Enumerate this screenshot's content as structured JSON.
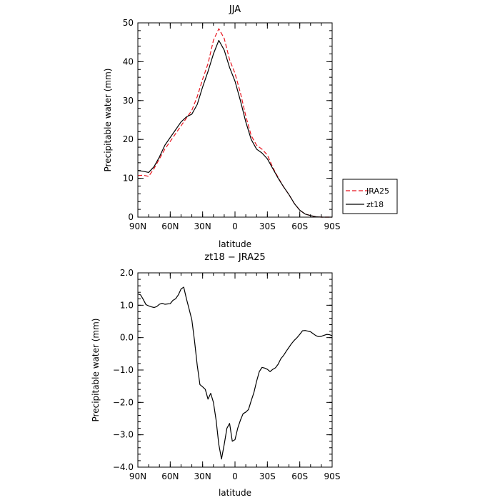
{
  "chart_data": [
    {
      "type": "line",
      "title": "JJA",
      "xlabel": "latitude",
      "ylabel": "Precipitable water (mm)",
      "xlim": [
        90,
        -90
      ],
      "ylim": [
        0,
        50
      ],
      "x_ticks": [
        90,
        60,
        30,
        0,
        -30,
        -60,
        -90
      ],
      "x_tick_labels": [
        "90N",
        "60N",
        "30N",
        "0",
        "30S",
        "60S",
        "90S"
      ],
      "y_ticks": [
        0,
        10,
        20,
        30,
        40,
        50
      ],
      "y_tick_labels": [
        "0",
        "10",
        "20",
        "30",
        "40",
        "50"
      ],
      "legend_position": "right",
      "series": [
        {
          "name": "JRA25",
          "color": "#e8141e",
          "dash": "dashed",
          "x": [
            90,
            85,
            80,
            75,
            70,
            65,
            60,
            55,
            50,
            45,
            40,
            35,
            30,
            25,
            20,
            15,
            10,
            5,
            0,
            -5,
            -10,
            -15,
            -20,
            -25,
            -30,
            -35,
            -40,
            -45,
            -50,
            -55,
            -60,
            -65,
            -70,
            -75,
            -80,
            -85,
            -90
          ],
          "y": [
            10.7,
            10.8,
            10.5,
            12.5,
            15,
            17.5,
            19.5,
            21.5,
            23.5,
            25.5,
            27.5,
            31,
            35.5,
            39.5,
            45.5,
            48.5,
            46,
            40.5,
            37,
            32,
            26,
            21,
            18.5,
            17.5,
            16,
            12.8,
            10.2,
            7.8,
            5.8,
            3.5,
            1.8,
            0.8,
            0.4,
            0.1,
            0,
            0,
            0
          ]
        },
        {
          "name": "zt18",
          "color": "#000000",
          "dash": "solid",
          "x": [
            90,
            85,
            80,
            75,
            70,
            65,
            60,
            55,
            50,
            45,
            40,
            35,
            30,
            25,
            20,
            15,
            10,
            5,
            0,
            -5,
            -10,
            -15,
            -20,
            -25,
            -30,
            -35,
            -40,
            -45,
            -50,
            -55,
            -60,
            -65,
            -70,
            -75,
            -80,
            -85,
            -90
          ],
          "y": [
            12,
            11.8,
            11.5,
            13,
            15.5,
            18.5,
            20.5,
            22.5,
            24.5,
            25.8,
            26.5,
            29,
            33.5,
            37.5,
            42,
            45.5,
            43,
            38.5,
            35,
            30,
            24.5,
            20,
            17.5,
            16.5,
            15,
            12.5,
            10,
            7.8,
            5.8,
            3.5,
            1.8,
            0.8,
            0.4,
            0.1,
            0,
            0,
            0
          ]
        }
      ]
    },
    {
      "type": "line",
      "title": "zt18 − JRA25",
      "xlabel": "latitude",
      "ylabel": "Precipitable water (mm)",
      "xlim": [
        90,
        -90
      ],
      "ylim": [
        -4,
        2
      ],
      "x_ticks": [
        90,
        60,
        30,
        0,
        -30,
        -60,
        -90
      ],
      "x_tick_labels": [
        "90N",
        "60N",
        "30N",
        "0",
        "30S",
        "60S",
        "90S"
      ],
      "y_ticks": [
        -4,
        -3,
        -2,
        -1,
        0,
        1,
        2
      ],
      "y_tick_labels": [
        "−4.0",
        "−3.0",
        "−2.0",
        "−1.0",
        "0.0",
        "1.0",
        "2.0"
      ],
      "series": [
        {
          "color": "#000000",
          "dash": "solid",
          "x": [
            90,
            87.5,
            85,
            82.5,
            80,
            77.5,
            75,
            72.5,
            70,
            67.5,
            65,
            62.5,
            60,
            57.5,
            55,
            52.5,
            50,
            47.5,
            45,
            42.5,
            40,
            37.5,
            35,
            32.5,
            30,
            27.5,
            25,
            22.5,
            20,
            17.5,
            15,
            12.5,
            10,
            7.5,
            5,
            2.5,
            0,
            -2.5,
            -5,
            -7.5,
            -10,
            -12.5,
            -15,
            -17.5,
            -20,
            -22.5,
            -25,
            -27.5,
            -30,
            -32.5,
            -35,
            -37.5,
            -40,
            -42.5,
            -45,
            -47.5,
            -50,
            -52.5,
            -55,
            -57.5,
            -60,
            -62.5,
            -65,
            -67.5,
            -70,
            -72.5,
            -75,
            -77.5,
            -80,
            -82.5,
            -85,
            -87.5,
            -90
          ],
          "y": [
            1.35,
            1.32,
            1.18,
            1.02,
            0.98,
            0.95,
            0.93,
            0.96,
            1.03,
            1.06,
            1.03,
            1.04,
            1.05,
            1.15,
            1.2,
            1.32,
            1.5,
            1.56,
            1.2,
            0.88,
            0.55,
            -0.1,
            -0.85,
            -1.45,
            -1.52,
            -1.6,
            -1.9,
            -1.72,
            -2.0,
            -2.55,
            -3.3,
            -3.75,
            -3.3,
            -2.8,
            -2.65,
            -3.2,
            -3.15,
            -2.8,
            -2.55,
            -2.35,
            -2.3,
            -2.22,
            -1.95,
            -1.7,
            -1.35,
            -1.05,
            -0.92,
            -0.94,
            -0.98,
            -1.05,
            -0.98,
            -0.93,
            -0.82,
            -0.65,
            -0.55,
            -0.42,
            -0.3,
            -0.18,
            -0.08,
            0.0,
            0.1,
            0.21,
            0.22,
            0.2,
            0.18,
            0.12,
            0.06,
            0.03,
            0.04,
            0.07,
            0.1,
            0.09,
            0.06
          ]
        }
      ]
    }
  ]
}
